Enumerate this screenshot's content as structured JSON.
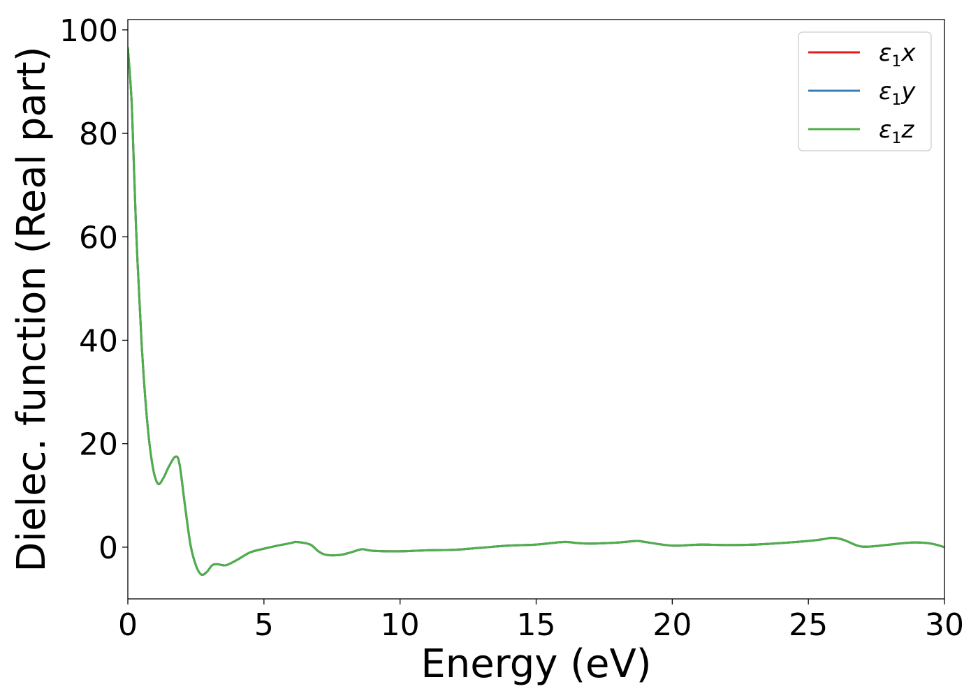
{
  "chart_data": {
    "type": "line",
    "title": "",
    "xlabel": "Energy (eV)",
    "ylabel": "Dielec. function (Real part)",
    "xlim": [
      0,
      30
    ],
    "ylim": [
      -10,
      102
    ],
    "xticks": [
      0,
      5,
      10,
      15,
      20,
      25,
      30
    ],
    "yticks": [
      0,
      20,
      40,
      60,
      80,
      100
    ],
    "grid": false,
    "legend_position": "top-right",
    "series": [
      {
        "name": "x",
        "color": "#e41a1c",
        "x": [
          0,
          0.15,
          0.3,
          0.5,
          0.7,
          0.9,
          1.1,
          1.3,
          1.5,
          1.75,
          1.9,
          2.1,
          2.3,
          2.5,
          2.7,
          2.9,
          3.1,
          3.3,
          3.6,
          4.0,
          4.5,
          5.0,
          5.5,
          6.0,
          6.2,
          6.7,
          7.0,
          7.3,
          7.8,
          8.2,
          8.6,
          9.0,
          10.0,
          11.0,
          12.0,
          13.0,
          14.0,
          15.0,
          16.0,
          16.5,
          17.0,
          18.0,
          18.7,
          19.0,
          20.0,
          21.0,
          22.0,
          23.0,
          24.0,
          25.0,
          25.5,
          25.9,
          26.3,
          26.8,
          27.2,
          28.0,
          28.8,
          29.5,
          30.0
        ],
        "values": [
          96.5,
          85,
          62,
          40,
          25,
          16,
          12.3,
          13.3,
          15.5,
          17.5,
          16.0,
          8.0,
          0.5,
          -3.5,
          -5.3,
          -4.8,
          -3.5,
          -3.3,
          -3.5,
          -2.5,
          -1.0,
          -0.3,
          0.3,
          0.8,
          1.0,
          0.5,
          -0.8,
          -1.5,
          -1.5,
          -1.0,
          -0.4,
          -0.7,
          -0.8,
          -0.6,
          -0.5,
          -0.1,
          0.3,
          0.5,
          1.0,
          0.8,
          0.7,
          0.9,
          1.2,
          1.0,
          0.3,
          0.5,
          0.4,
          0.5,
          0.8,
          1.2,
          1.5,
          1.8,
          1.4,
          0.3,
          0.1,
          0.5,
          0.9,
          0.7,
          0.0
        ]
      },
      {
        "name": "y",
        "color": "#377eb8",
        "x": [
          0,
          0.15,
          0.3,
          0.5,
          0.7,
          0.9,
          1.1,
          1.3,
          1.5,
          1.75,
          1.9,
          2.1,
          2.3,
          2.5,
          2.7,
          2.9,
          3.1,
          3.3,
          3.6,
          4.0,
          4.5,
          5.0,
          5.5,
          6.0,
          6.2,
          6.7,
          7.0,
          7.3,
          7.8,
          8.2,
          8.6,
          9.0,
          10.0,
          11.0,
          12.0,
          13.0,
          14.0,
          15.0,
          16.0,
          16.5,
          17.0,
          18.0,
          18.7,
          19.0,
          20.0,
          21.0,
          22.0,
          23.0,
          24.0,
          25.0,
          25.5,
          25.9,
          26.3,
          26.8,
          27.2,
          28.0,
          28.8,
          29.5,
          30.0
        ],
        "values": [
          96.5,
          85,
          62,
          40,
          25,
          16,
          12.3,
          13.3,
          15.5,
          17.5,
          16.0,
          8.0,
          0.5,
          -3.5,
          -5.3,
          -4.8,
          -3.5,
          -3.3,
          -3.5,
          -2.5,
          -1.0,
          -0.3,
          0.3,
          0.8,
          1.0,
          0.5,
          -0.8,
          -1.5,
          -1.5,
          -1.0,
          -0.4,
          -0.7,
          -0.8,
          -0.6,
          -0.5,
          -0.1,
          0.3,
          0.5,
          1.0,
          0.8,
          0.7,
          0.9,
          1.2,
          1.0,
          0.3,
          0.5,
          0.4,
          0.5,
          0.8,
          1.2,
          1.5,
          1.8,
          1.4,
          0.3,
          0.1,
          0.5,
          0.9,
          0.7,
          0.0
        ]
      },
      {
        "name": "z",
        "color": "#4daf4a",
        "x": [
          0,
          0.15,
          0.3,
          0.5,
          0.7,
          0.9,
          1.1,
          1.3,
          1.5,
          1.75,
          1.9,
          2.1,
          2.3,
          2.5,
          2.7,
          2.9,
          3.1,
          3.3,
          3.6,
          4.0,
          4.5,
          5.0,
          5.5,
          6.0,
          6.2,
          6.7,
          7.0,
          7.3,
          7.8,
          8.2,
          8.6,
          9.0,
          10.0,
          11.0,
          12.0,
          13.0,
          14.0,
          15.0,
          16.0,
          16.5,
          17.0,
          18.0,
          18.7,
          19.0,
          20.0,
          21.0,
          22.0,
          23.0,
          24.0,
          25.0,
          25.5,
          25.9,
          26.3,
          26.8,
          27.2,
          28.0,
          28.8,
          29.5,
          30.0
        ],
        "values": [
          96.5,
          85,
          62,
          40,
          25,
          16,
          12.3,
          13.3,
          15.5,
          17.5,
          16.0,
          8.0,
          0.5,
          -3.5,
          -5.3,
          -4.8,
          -3.5,
          -3.3,
          -3.5,
          -2.5,
          -1.0,
          -0.3,
          0.3,
          0.8,
          1.0,
          0.5,
          -0.8,
          -1.5,
          -1.5,
          -1.0,
          -0.4,
          -0.7,
          -0.8,
          -0.6,
          -0.5,
          -0.1,
          0.3,
          0.5,
          1.0,
          0.8,
          0.7,
          0.9,
          1.2,
          1.0,
          0.3,
          0.5,
          0.4,
          0.5,
          0.8,
          1.2,
          1.5,
          1.8,
          1.4,
          0.3,
          0.1,
          0.5,
          0.9,
          0.7,
          0.0
        ]
      }
    ],
    "legend": [
      {
        "symbol": "ε",
        "subscript": "1",
        "suffix": "x"
      },
      {
        "symbol": "ε",
        "subscript": "1",
        "suffix": "y"
      },
      {
        "symbol": "ε",
        "subscript": "1",
        "suffix": "z"
      }
    ]
  }
}
